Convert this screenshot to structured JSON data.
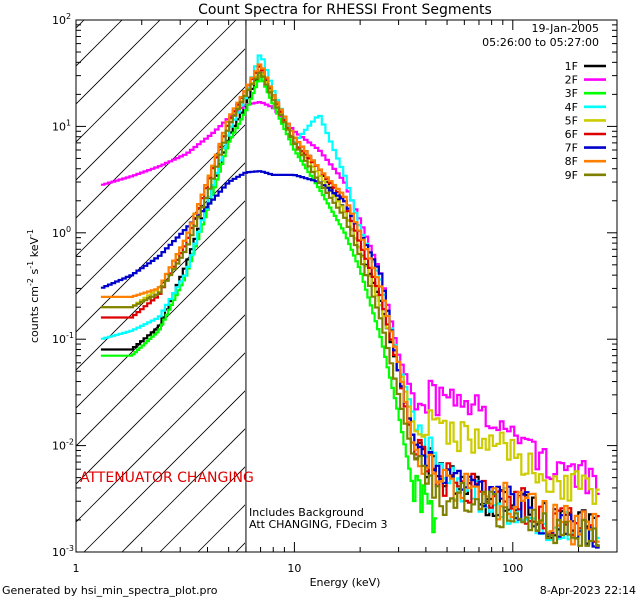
{
  "chart_data": {
    "type": "line",
    "title": "Count Spectra for RHESSI Front Segments",
    "xlabel": "Energy (keV)",
    "ylabel_main": "counts cm",
    "ylabel_exp1": "-2",
    "ylabel_mid": " s",
    "ylabel_exp2": "-1",
    "ylabel_mid2": " keV",
    "ylabel_exp3": "-1",
    "xscale": "log",
    "yscale": "log",
    "xlim": [
      1,
      300
    ],
    "ylim": [
      0.001,
      100
    ],
    "x_tick_labels": [
      {
        "value": 1,
        "label": "1"
      },
      {
        "value": 10,
        "label": "10"
      },
      {
        "value": 100,
        "label": "100"
      }
    ],
    "y_tick_labels": [
      {
        "value": 0.001,
        "base": "10",
        "exp": "-3"
      },
      {
        "value": 0.01,
        "base": "10",
        "exp": "-2"
      },
      {
        "value": 0.1,
        "base": "10",
        "exp": "-1"
      },
      {
        "value": 1,
        "base": "10",
        "exp": "0"
      },
      {
        "value": 10,
        "base": "10",
        "exp": "1"
      },
      {
        "value": 100,
        "base": "10",
        "exp": "2"
      }
    ],
    "date": "19-Jan-2005",
    "time_range": "05:26:00 to 05:27:00",
    "attenuator_label": "ATTENUATOR CHANGING",
    "attenuator_color": "#e00000",
    "attenuator_energy_limit": 6,
    "background_note_1": "Includes Background",
    "background_note_2": "Att CHANGING, FDecim 3",
    "footer_left": "Generated by hsi_min_spectra_plot.pro",
    "footer_right": "8-Apr-2023 22:14",
    "series": [
      {
        "name": "1F",
        "color": "#000000",
        "points": [
          [
            1.3,
            0.08
          ],
          [
            1.8,
            0.08
          ],
          [
            2.4,
            0.13
          ],
          [
            3.2,
            0.5
          ],
          [
            4.2,
            2.5
          ],
          [
            5,
            8
          ],
          [
            6,
            16
          ],
          [
            7,
            35
          ],
          [
            8,
            20
          ],
          [
            10,
            8
          ],
          [
            13,
            4
          ],
          [
            17,
            1.6
          ],
          [
            20,
            0.7
          ],
          [
            25,
            0.22
          ],
          [
            30,
            0.05
          ],
          [
            35,
            0.012
          ],
          [
            45,
            0.005
          ],
          [
            60,
            0.004
          ],
          [
            80,
            0.003
          ],
          [
            100,
            0.003
          ],
          [
            150,
            0.002
          ],
          [
            250,
            0.0015
          ]
        ]
      },
      {
        "name": "2F",
        "color": "#ff00ff",
        "points": [
          [
            1.3,
            2.8
          ],
          [
            1.8,
            3.4
          ],
          [
            2.4,
            4.2
          ],
          [
            3.2,
            5.5
          ],
          [
            4.2,
            8.5
          ],
          [
            5,
            12
          ],
          [
            6,
            16
          ],
          [
            7,
            17
          ],
          [
            8,
            15
          ],
          [
            10,
            9
          ],
          [
            13,
            6
          ],
          [
            17,
            3
          ],
          [
            20,
            1.3
          ],
          [
            25,
            0.4
          ],
          [
            30,
            0.07
          ],
          [
            35,
            0.03
          ],
          [
            45,
            0.027
          ],
          [
            60,
            0.022
          ],
          [
            80,
            0.02
          ],
          [
            100,
            0.012
          ],
          [
            150,
            0.007
          ],
          [
            250,
            0.004
          ]
        ]
      },
      {
        "name": "3F",
        "color": "#00ff00",
        "points": [
          [
            1.3,
            0.07
          ],
          [
            1.8,
            0.07
          ],
          [
            2.4,
            0.12
          ],
          [
            3.2,
            0.4
          ],
          [
            4.2,
            2.2
          ],
          [
            5,
            7
          ],
          [
            6,
            14
          ],
          [
            7,
            30
          ],
          [
            8,
            16
          ],
          [
            10,
            6
          ],
          [
            13,
            2.6
          ],
          [
            17,
            1
          ],
          [
            20,
            0.45
          ],
          [
            25,
            0.1
          ],
          [
            30,
            0.02
          ],
          [
            35,
            0.004
          ],
          [
            45,
            0.002
          ]
        ]
      },
      {
        "name": "4F",
        "color": "#00ffff",
        "points": [
          [
            1.3,
            0.1
          ],
          [
            1.8,
            0.12
          ],
          [
            2.4,
            0.16
          ],
          [
            3.2,
            0.42
          ],
          [
            4.2,
            2.6
          ],
          [
            5,
            9
          ],
          [
            6,
            19
          ],
          [
            7,
            50
          ],
          [
            8,
            22
          ],
          [
            10,
            7
          ],
          [
            13,
            13
          ],
          [
            17,
            3.5
          ],
          [
            20,
            1.1
          ],
          [
            25,
            0.35
          ],
          [
            30,
            0.06
          ],
          [
            35,
            0.02
          ],
          [
            45,
            0.006
          ],
          [
            60,
            0.004
          ],
          [
            80,
            0.003
          ],
          [
            100,
            0.0025
          ],
          [
            150,
            0.0018
          ],
          [
            250,
            0.0012
          ]
        ]
      },
      {
        "name": "5F",
        "color": "#cccc00",
        "points": [
          [
            1.3,
            0.2
          ],
          [
            1.8,
            0.2
          ],
          [
            2.4,
            0.3
          ],
          [
            3.2,
            0.9
          ],
          [
            4.2,
            4
          ],
          [
            5,
            11
          ],
          [
            6,
            20
          ],
          [
            7,
            35
          ],
          [
            8,
            19
          ],
          [
            10,
            7
          ],
          [
            13,
            3.5
          ],
          [
            17,
            1.6
          ],
          [
            20,
            0.7
          ],
          [
            25,
            0.2
          ],
          [
            30,
            0.06
          ],
          [
            35,
            0.016
          ],
          [
            45,
            0.015
          ],
          [
            60,
            0.012
          ],
          [
            80,
            0.01
          ],
          [
            100,
            0.008
          ],
          [
            150,
            0.005
          ],
          [
            250,
            0.003
          ]
        ]
      },
      {
        "name": "6F",
        "color": "#dd0000",
        "points": [
          [
            1.3,
            0.16
          ],
          [
            1.8,
            0.16
          ],
          [
            2.4,
            0.26
          ],
          [
            3.2,
            0.8
          ],
          [
            4.2,
            3.8
          ],
          [
            5,
            11
          ],
          [
            6,
            22
          ],
          [
            7,
            38
          ],
          [
            8,
            20
          ],
          [
            10,
            7
          ],
          [
            13,
            4
          ],
          [
            17,
            2
          ],
          [
            20,
            0.8
          ],
          [
            25,
            0.25
          ],
          [
            30,
            0.05
          ],
          [
            35,
            0.01
          ],
          [
            45,
            0.005
          ],
          [
            60,
            0.004
          ],
          [
            80,
            0.003
          ],
          [
            100,
            0.003
          ],
          [
            150,
            0.002
          ],
          [
            250,
            0.0015
          ]
        ]
      },
      {
        "name": "7F",
        "color": "#0000cc",
        "points": [
          [
            1.3,
            0.3
          ],
          [
            1.8,
            0.4
          ],
          [
            2.4,
            0.6
          ],
          [
            3.2,
            1.1
          ],
          [
            4.2,
            2
          ],
          [
            5,
            3
          ],
          [
            6,
            3.7
          ],
          [
            7,
            3.8
          ],
          [
            8,
            3.5
          ],
          [
            10,
            3.5
          ],
          [
            13,
            3
          ],
          [
            17,
            2
          ],
          [
            20,
            1
          ],
          [
            25,
            0.4
          ],
          [
            30,
            0.05
          ],
          [
            35,
            0.012
          ],
          [
            45,
            0.005
          ],
          [
            60,
            0.004
          ],
          [
            80,
            0.003
          ],
          [
            100,
            0.003
          ],
          [
            150,
            0.002
          ],
          [
            250,
            0.0015
          ]
        ]
      },
      {
        "name": "8F",
        "color": "#ff7f00",
        "points": [
          [
            1.3,
            0.25
          ],
          [
            1.8,
            0.25
          ],
          [
            2.4,
            0.3
          ],
          [
            3.2,
            0.9
          ],
          [
            4.2,
            4
          ],
          [
            5,
            12
          ],
          [
            6,
            22
          ],
          [
            7,
            40
          ],
          [
            8,
            20
          ],
          [
            10,
            8
          ],
          [
            13,
            4
          ],
          [
            17,
            2.2
          ],
          [
            20,
            1
          ],
          [
            25,
            0.3
          ],
          [
            30,
            0.06
          ],
          [
            35,
            0.01
          ],
          [
            45,
            0.005
          ],
          [
            60,
            0.004
          ],
          [
            80,
            0.003
          ],
          [
            100,
            0.003
          ],
          [
            150,
            0.002
          ],
          [
            250,
            0.0015
          ]
        ]
      },
      {
        "name": "9F",
        "color": "#808000",
        "points": [
          [
            1.3,
            0.2
          ],
          [
            1.8,
            0.2
          ],
          [
            2.4,
            0.27
          ],
          [
            3.2,
            0.7
          ],
          [
            4.2,
            3
          ],
          [
            5,
            10
          ],
          [
            6,
            20
          ],
          [
            7,
            33
          ],
          [
            8,
            18
          ],
          [
            10,
            7
          ],
          [
            13,
            3
          ],
          [
            17,
            1.4
          ],
          [
            20,
            0.6
          ],
          [
            25,
            0.15
          ],
          [
            30,
            0.03
          ],
          [
            35,
            0.008
          ],
          [
            45,
            0.003
          ],
          [
            60,
            0.003
          ],
          [
            80,
            0.0025
          ],
          [
            100,
            0.002
          ],
          [
            150,
            0.0018
          ],
          [
            250,
            0.0012
          ]
        ]
      }
    ]
  }
}
